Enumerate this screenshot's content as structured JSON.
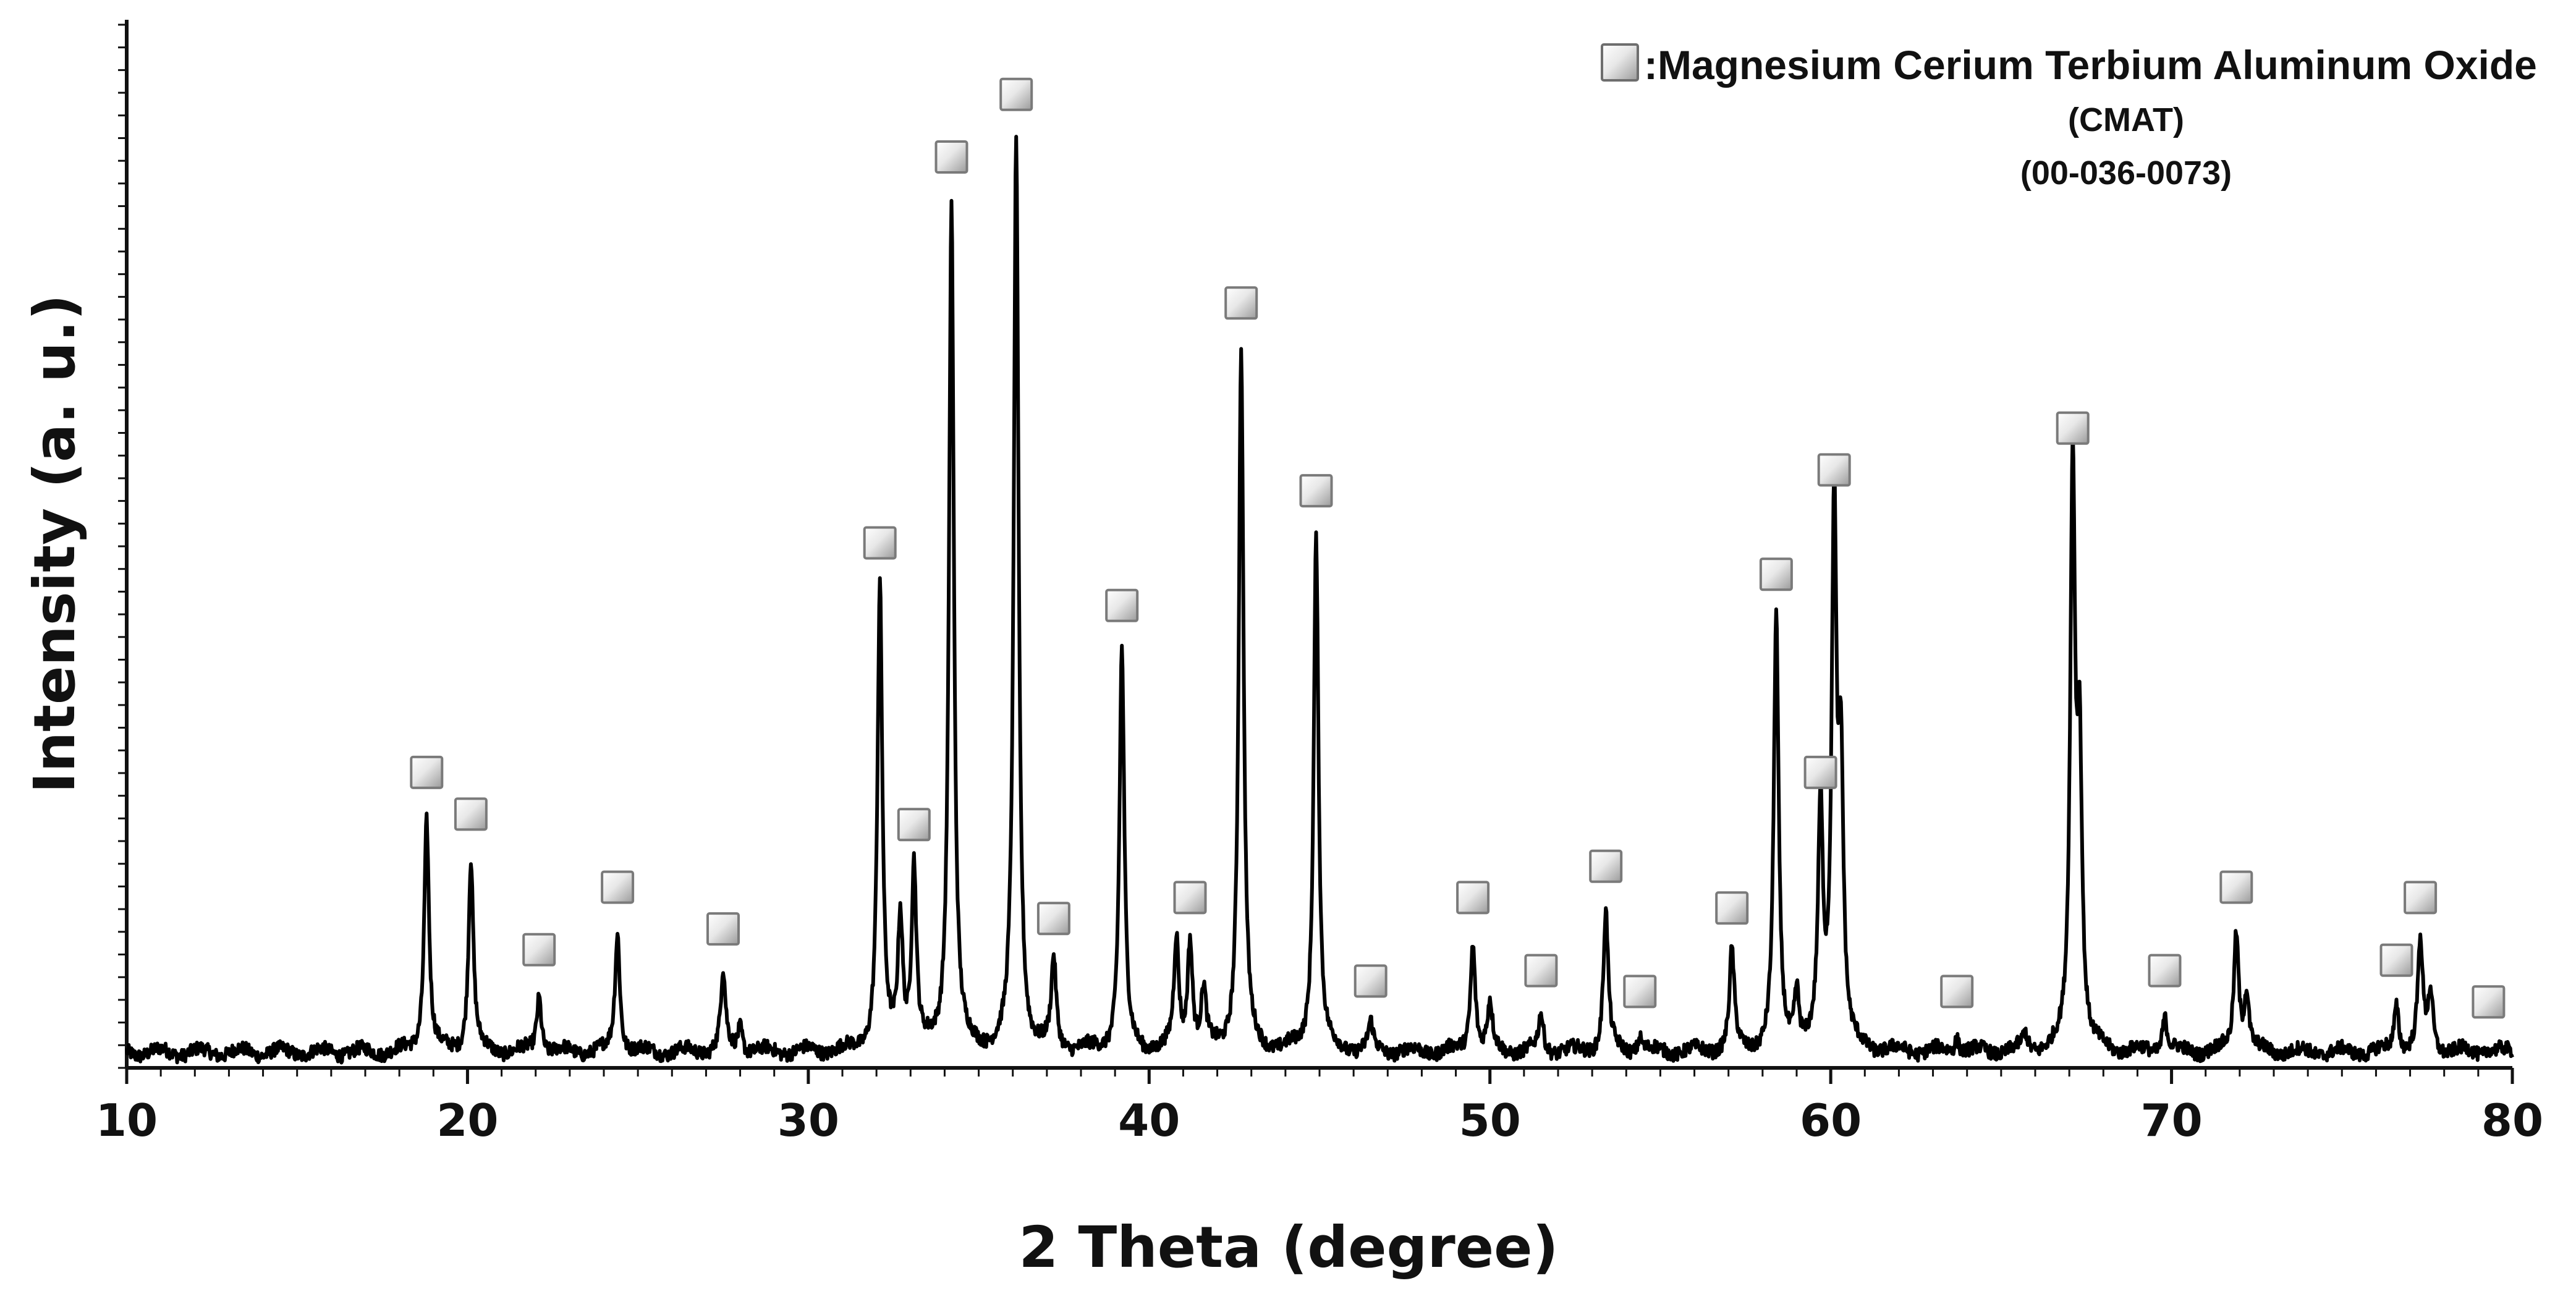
{
  "chart_data": {
    "type": "line",
    "title": "",
    "xlabel": "2 Theta (degree)",
    "ylabel": "Intensity (a. u.)",
    "xlim": [
      10,
      80
    ],
    "ylim": [
      0,
      100
    ],
    "x_ticks": [
      "10",
      "20",
      "30",
      "40",
      "50",
      "60",
      "70",
      "80"
    ],
    "y_tick_labels": false,
    "grid": false,
    "legend": {
      "placement": "top-right",
      "marker": "square",
      "label": ":Magnesium Cerium Terbium Aluminum Oxide",
      "sublabel1": "(CMAT)",
      "sublabel2": "(00-036-0073)"
    },
    "baseline": 1.5,
    "series": [
      {
        "line_color": "#000000",
        "peaks": [
          {
            "x": 18.8,
            "y": 24,
            "marked": true
          },
          {
            "x": 20.1,
            "y": 20,
            "marked": true
          },
          {
            "x": 22.1,
            "y": 7,
            "marked": true
          },
          {
            "x": 24.4,
            "y": 13,
            "marked": true
          },
          {
            "x": 27.5,
            "y": 9,
            "marked": true
          },
          {
            "x": 28.0,
            "y": 4,
            "marked": false
          },
          {
            "x": 32.1,
            "y": 46,
            "marked": true
          },
          {
            "x": 32.7,
            "y": 14,
            "marked": false
          },
          {
            "x": 33.1,
            "y": 19,
            "marked": true
          },
          {
            "x": 34.2,
            "y": 83,
            "marked": true
          },
          {
            "x": 36.1,
            "y": 89,
            "marked": true
          },
          {
            "x": 37.2,
            "y": 10,
            "marked": true
          },
          {
            "x": 39.2,
            "y": 40,
            "marked": true
          },
          {
            "x": 40.8,
            "y": 12,
            "marked": false
          },
          {
            "x": 41.2,
            "y": 12,
            "marked": true
          },
          {
            "x": 41.6,
            "y": 7,
            "marked": false
          },
          {
            "x": 42.7,
            "y": 69,
            "marked": true
          },
          {
            "x": 44.9,
            "y": 51,
            "marked": true
          },
          {
            "x": 46.5,
            "y": 4,
            "marked": true
          },
          {
            "x": 49.5,
            "y": 12,
            "marked": true
          },
          {
            "x": 50.0,
            "y": 6,
            "marked": false
          },
          {
            "x": 51.5,
            "y": 5,
            "marked": true
          },
          {
            "x": 53.4,
            "y": 15,
            "marked": true
          },
          {
            "x": 54.4,
            "y": 3,
            "marked": true
          },
          {
            "x": 57.1,
            "y": 11,
            "marked": true
          },
          {
            "x": 58.4,
            "y": 43,
            "marked": true
          },
          {
            "x": 59.0,
            "y": 7,
            "marked": false
          },
          {
            "x": 59.7,
            "y": 24,
            "marked": true
          },
          {
            "x": 60.1,
            "y": 53,
            "marked": true
          },
          {
            "x": 60.3,
            "y": 27,
            "marked": false
          },
          {
            "x": 63.7,
            "y": 3,
            "marked": true
          },
          {
            "x": 65.7,
            "y": 3,
            "marked": false
          },
          {
            "x": 67.1,
            "y": 57,
            "marked": true
          },
          {
            "x": 67.3,
            "y": 29,
            "marked": false
          },
          {
            "x": 69.8,
            "y": 5,
            "marked": true
          },
          {
            "x": 71.9,
            "y": 13,
            "marked": true
          },
          {
            "x": 72.2,
            "y": 7,
            "marked": false
          },
          {
            "x": 76.6,
            "y": 6,
            "marked": true
          },
          {
            "x": 77.3,
            "y": 12,
            "marked": true
          },
          {
            "x": 77.6,
            "y": 7,
            "marked": false
          },
          {
            "x": 79.3,
            "y": 2,
            "marked": true
          }
        ]
      }
    ]
  }
}
